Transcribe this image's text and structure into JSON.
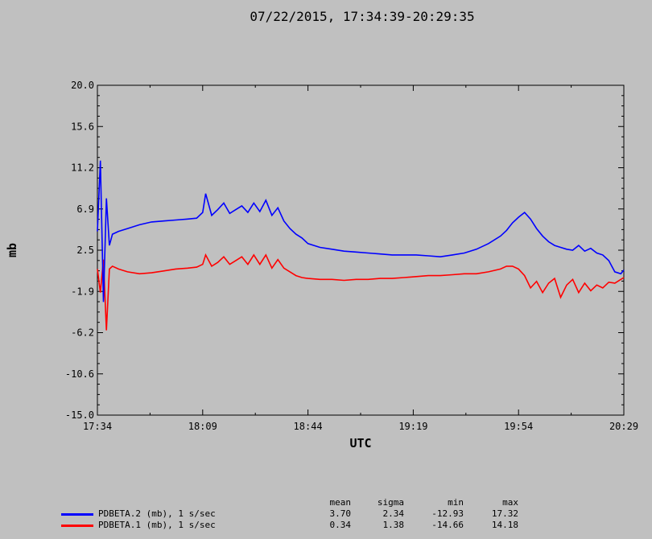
{
  "chart_data": {
    "type": "line",
    "title": "07/22/2015, 17:34:39-20:29:35",
    "xlabel": "UTC",
    "ylabel": "mb",
    "x_ticks": [
      "17:34",
      "18:09",
      "18:44",
      "19:19",
      "19:54",
      "20:29"
    ],
    "x_tick_minutes": [
      0,
      35,
      70,
      105,
      140,
      175
    ],
    "xlim_minutes": [
      0,
      175
    ],
    "y_ticks": [
      "20.0",
      "15.6",
      "11.2",
      "6.9",
      "2.5",
      "-1.9",
      "-6.2",
      "-10.6",
      "-15.0"
    ],
    "ylim": [
      -15.0,
      20.0
    ],
    "grid": false,
    "stats_headers": [
      "mean",
      "sigma",
      "min",
      "max"
    ],
    "series": [
      {
        "name": "PDBETA.2 (mb), 1 s/sec",
        "color": "#0000ff",
        "stats": [
          "3.70",
          "2.34",
          "-12.93",
          "17.32"
        ],
        "x": [
          0,
          1,
          2,
          3,
          4,
          5,
          7,
          10,
          14,
          18,
          22,
          26,
          30,
          33,
          35,
          36,
          38,
          40,
          42,
          44,
          46,
          48,
          50,
          52,
          54,
          56,
          58,
          60,
          62,
          64,
          66,
          68,
          70,
          74,
          78,
          82,
          86,
          90,
          94,
          98,
          102,
          106,
          110,
          114,
          118,
          122,
          126,
          130,
          134,
          136,
          138,
          140,
          142,
          144,
          146,
          148,
          150,
          152,
          154,
          156,
          158,
          160,
          162,
          164,
          166,
          168,
          170,
          172,
          174,
          175
        ],
        "y": [
          4.5,
          12.0,
          -3.0,
          8.0,
          3.0,
          4.2,
          4.5,
          4.8,
          5.2,
          5.5,
          5.6,
          5.7,
          5.8,
          5.9,
          6.5,
          8.5,
          6.2,
          6.8,
          7.5,
          6.4,
          6.8,
          7.2,
          6.5,
          7.5,
          6.6,
          7.8,
          6.2,
          7.0,
          5.6,
          4.8,
          4.2,
          3.8,
          3.2,
          2.8,
          2.6,
          2.4,
          2.3,
          2.2,
          2.1,
          2.0,
          2.0,
          2.0,
          1.9,
          1.8,
          2.0,
          2.2,
          2.6,
          3.2,
          4.0,
          4.6,
          5.4,
          6.0,
          6.5,
          5.8,
          4.8,
          4.0,
          3.4,
          3.0,
          2.8,
          2.6,
          2.5,
          3.0,
          2.4,
          2.7,
          2.2,
          2.0,
          1.4,
          0.2,
          0.0,
          0.4
        ]
      },
      {
        "name": "PDBETA.1 (mb), 1 s/sec",
        "color": "#ff0000",
        "stats": [
          "0.34",
          "1.38",
          "-14.66",
          "14.18"
        ],
        "x": [
          0,
          1,
          2,
          3,
          4,
          5,
          7,
          10,
          14,
          18,
          22,
          26,
          30,
          33,
          35,
          36,
          38,
          40,
          42,
          44,
          46,
          48,
          50,
          52,
          54,
          56,
          58,
          60,
          62,
          64,
          66,
          68,
          70,
          74,
          78,
          82,
          86,
          90,
          94,
          98,
          102,
          106,
          110,
          114,
          118,
          122,
          126,
          130,
          134,
          136,
          138,
          140,
          142,
          144,
          146,
          148,
          150,
          152,
          154,
          156,
          158,
          160,
          162,
          164,
          166,
          168,
          170,
          172,
          174,
          175
        ],
        "y": [
          0.5,
          -2.0,
          1.5,
          -6.0,
          0.5,
          0.8,
          0.5,
          0.2,
          0.0,
          0.1,
          0.3,
          0.5,
          0.6,
          0.7,
          1.0,
          2.0,
          0.8,
          1.2,
          1.8,
          1.0,
          1.4,
          1.8,
          1.0,
          2.0,
          1.0,
          2.0,
          0.6,
          1.5,
          0.6,
          0.2,
          -0.2,
          -0.4,
          -0.5,
          -0.6,
          -0.6,
          -0.7,
          -0.6,
          -0.6,
          -0.5,
          -0.5,
          -0.4,
          -0.3,
          -0.2,
          -0.2,
          -0.1,
          0.0,
          0.0,
          0.2,
          0.5,
          0.8,
          0.8,
          0.5,
          -0.2,
          -1.5,
          -0.8,
          -2.0,
          -1.0,
          -0.5,
          -2.5,
          -1.2,
          -0.6,
          -2.0,
          -1.0,
          -1.8,
          -1.2,
          -1.5,
          -0.9,
          -1.0,
          -0.6,
          -0.4
        ]
      }
    ]
  }
}
